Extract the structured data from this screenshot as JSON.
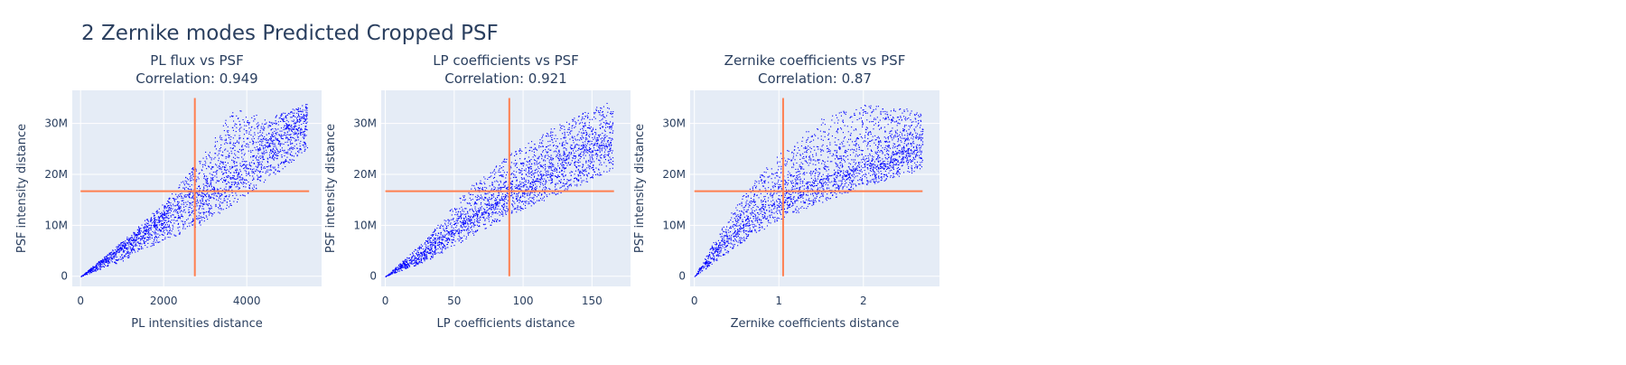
{
  "title": "2 Zernike modes Predicted Cropped PSF",
  "chart_data": [
    {
      "type": "scatter",
      "title": "PL flux vs PSF",
      "subtitle": "Correlation: 0.949",
      "xlabel": "PL intensities distance",
      "ylabel": "PSF intensity distance",
      "xlim": [
        -200,
        5800
      ],
      "ylim": [
        -2000000,
        36500000
      ],
      "xticks": [
        0,
        2000,
        4000
      ],
      "xticklabels": [
        "0",
        "2000",
        "4000"
      ],
      "yticks": [
        0,
        10000000,
        20000000,
        30000000
      ],
      "yticklabels": [
        "0",
        "10M",
        "20M",
        "30M"
      ],
      "grid": true,
      "point_color": "#0000ff",
      "line_color": "#ff7f50",
      "mean_x": 2750,
      "mean_y": 16700000,
      "hline_x_range": [
        0,
        5500
      ],
      "vline_y_range": [
        0,
        35000000
      ],
      "cloud": {
        "x_max": 5450,
        "center": [
          [
            0,
            0
          ],
          [
            1000,
            5500000
          ],
          [
            2000,
            11300000
          ],
          [
            3000,
            17200000
          ],
          [
            4000,
            22500000
          ],
          [
            5000,
            28000000
          ],
          [
            5450,
            31000000
          ]
        ],
        "upper": [
          [
            0,
            0
          ],
          [
            1000,
            7000000
          ],
          [
            2000,
            14500000
          ],
          [
            3000,
            24500000
          ],
          [
            3700,
            33500000
          ],
          [
            4500,
            31000000
          ],
          [
            5450,
            34000000
          ]
        ],
        "lower": [
          [
            0,
            0
          ],
          [
            1000,
            3000000
          ],
          [
            2000,
            7000000
          ],
          [
            3000,
            10500000
          ],
          [
            4000,
            16000000
          ],
          [
            5000,
            22000000
          ],
          [
            5450,
            25000000
          ]
        ]
      }
    },
    {
      "type": "scatter",
      "title": "LP coefficients vs PSF",
      "subtitle": "Correlation: 0.921",
      "xlabel": "LP coefficients distance",
      "ylabel": "PSF intensity distance",
      "xlim": [
        -3,
        178
      ],
      "ylim": [
        -2000000,
        36500000
      ],
      "xticks": [
        0,
        50,
        100,
        150
      ],
      "xticklabels": [
        "0",
        "50",
        "100",
        "150"
      ],
      "yticks": [
        0,
        10000000,
        20000000,
        30000000
      ],
      "yticklabels": [
        "0",
        "10M",
        "20M",
        "30M"
      ],
      "grid": true,
      "point_color": "#0000ff",
      "line_color": "#ff7f50",
      "mean_x": 90,
      "mean_y": 16700000,
      "hline_x_range": [
        0,
        166
      ],
      "vline_y_range": [
        0,
        35000000
      ],
      "cloud": {
        "x_max": 165,
        "center": [
          [
            0,
            0
          ],
          [
            30,
            5000000
          ],
          [
            60,
            11500000
          ],
          [
            90,
            17000000
          ],
          [
            120,
            21500000
          ],
          [
            150,
            25500000
          ],
          [
            165,
            27000000
          ]
        ],
        "upper": [
          [
            0,
            0
          ],
          [
            30,
            7500000
          ],
          [
            60,
            17500000
          ],
          [
            90,
            24000000
          ],
          [
            120,
            29000000
          ],
          [
            150,
            33000000
          ],
          [
            165,
            34500000
          ]
        ],
        "lower": [
          [
            0,
            0
          ],
          [
            30,
            3000000
          ],
          [
            60,
            7500000
          ],
          [
            90,
            12000000
          ],
          [
            120,
            15500000
          ],
          [
            150,
            19000000
          ],
          [
            165,
            21000000
          ]
        ]
      }
    },
    {
      "type": "scatter",
      "title": "Zernike coefficients vs PSF",
      "subtitle": "Correlation: 0.87",
      "xlabel": "Zernike coefficients distance",
      "ylabel": "PSF intensity distance",
      "xlim": [
        -0.05,
        2.9
      ],
      "ylim": [
        -2000000,
        36500000
      ],
      "xticks": [
        0,
        1,
        2
      ],
      "xticklabels": [
        "0",
        "1",
        "2"
      ],
      "yticks": [
        0,
        10000000,
        20000000,
        30000000
      ],
      "yticklabels": [
        "0",
        "10M",
        "20M",
        "30M"
      ],
      "grid": true,
      "point_color": "#0000ff",
      "line_color": "#ff7f50",
      "mean_x": 1.05,
      "mean_y": 16700000,
      "hline_x_range": [
        0,
        2.7
      ],
      "vline_y_range": [
        0,
        35000000
      ],
      "cloud": {
        "x_max": 2.7,
        "center": [
          [
            0,
            0
          ],
          [
            0.3,
            6000000
          ],
          [
            0.6,
            11000000
          ],
          [
            1.0,
            16000000
          ],
          [
            1.5,
            19500000
          ],
          [
            2.0,
            22500000
          ],
          [
            2.5,
            25000000
          ],
          [
            2.7,
            26000000
          ]
        ],
        "upper": [
          [
            0,
            0
          ],
          [
            0.3,
            9000000
          ],
          [
            0.6,
            17000000
          ],
          [
            1.0,
            24000000
          ],
          [
            1.5,
            31000000
          ],
          [
            2.0,
            34000000
          ],
          [
            2.5,
            33000000
          ],
          [
            2.7,
            32000000
          ]
        ],
        "lower": [
          [
            0,
            0
          ],
          [
            0.3,
            3500000
          ],
          [
            0.6,
            7000000
          ],
          [
            1.0,
            11000000
          ],
          [
            1.5,
            14500000
          ],
          [
            2.0,
            17500000
          ],
          [
            2.5,
            20000000
          ],
          [
            2.7,
            21000000
          ]
        ]
      }
    }
  ]
}
